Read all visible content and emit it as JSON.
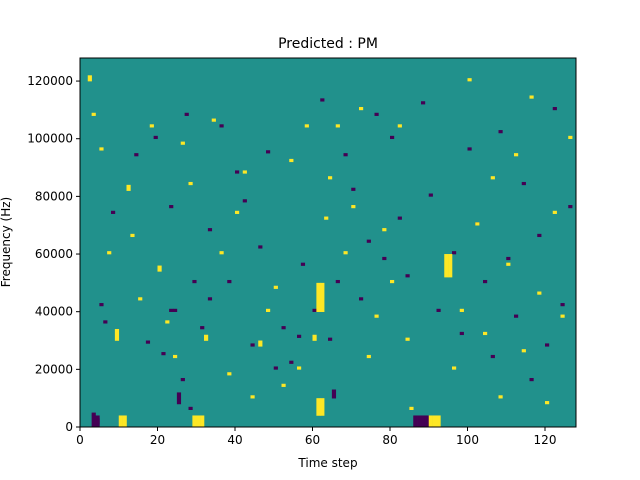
{
  "chart_data": {
    "type": "heatmap",
    "title": "Predicted : PM",
    "xlabel": "Time step",
    "ylabel": "Frequency (Hz)",
    "xlim": [
      0,
      128
    ],
    "ylim": [
      0,
      128000
    ],
    "x_ticks": [
      0,
      20,
      40,
      60,
      80,
      100,
      120
    ],
    "x_tick_labels": [
      "0",
      "20",
      "40",
      "60",
      "80",
      "100",
      "120"
    ],
    "y_ticks": [
      0,
      20000,
      40000,
      60000,
      80000,
      100000,
      120000
    ],
    "y_tick_labels": [
      "0",
      "20000",
      "40000",
      "60000",
      "80000",
      "100000",
      "120000"
    ],
    "n_time_steps": 128,
    "n_freq_bins": 128,
    "grid": false,
    "legend": "none",
    "colors": {
      "background": "#21918c",
      "low": "#440154",
      "high": "#fde725"
    },
    "cells": {
      "low": [
        [
          3,
          0,
          4
        ],
        [
          3,
          4,
          1
        ],
        [
          4,
          0,
          4
        ],
        [
          4,
          1,
          2
        ],
        [
          5,
          42,
          1
        ],
        [
          6,
          36,
          1
        ],
        [
          8,
          74,
          1
        ],
        [
          14,
          94,
          1
        ],
        [
          17,
          29,
          1
        ],
        [
          19,
          100,
          1
        ],
        [
          21,
          25,
          1
        ],
        [
          23,
          40,
          1
        ],
        [
          23,
          76,
          1
        ],
        [
          24,
          40,
          1
        ],
        [
          25,
          8,
          4
        ],
        [
          26,
          16,
          1
        ],
        [
          27,
          108,
          1
        ],
        [
          28,
          6,
          1
        ],
        [
          29,
          50,
          1
        ],
        [
          31,
          34,
          1
        ],
        [
          33,
          44,
          1
        ],
        [
          33,
          68,
          1
        ],
        [
          36,
          104,
          1
        ],
        [
          38,
          50,
          1
        ],
        [
          40,
          88,
          1
        ],
        [
          42,
          78,
          1
        ],
        [
          44,
          28,
          1
        ],
        [
          46,
          62,
          1
        ],
        [
          48,
          95,
          1
        ],
        [
          50,
          20,
          1
        ],
        [
          52,
          34,
          1
        ],
        [
          54,
          22,
          1
        ],
        [
          56,
          31,
          1
        ],
        [
          57,
          56,
          1
        ],
        [
          60,
          40,
          1
        ],
        [
          62,
          113,
          1
        ],
        [
          64,
          30,
          1
        ],
        [
          65,
          10,
          3
        ],
        [
          66,
          50,
          1
        ],
        [
          68,
          94,
          1
        ],
        [
          70,
          82,
          1
        ],
        [
          72,
          44,
          1
        ],
        [
          74,
          64,
          1
        ],
        [
          76,
          108,
          1
        ],
        [
          78,
          58,
          1
        ],
        [
          80,
          100,
          1
        ],
        [
          82,
          72,
          1
        ],
        [
          84,
          52,
          1
        ],
        [
          86,
          0,
          4
        ],
        [
          87,
          0,
          4
        ],
        [
          88,
          0,
          4
        ],
        [
          89,
          0,
          4
        ],
        [
          88,
          112,
          1
        ],
        [
          90,
          80,
          1
        ],
        [
          92,
          40,
          1
        ],
        [
          96,
          60,
          1
        ],
        [
          98,
          32,
          1
        ],
        [
          100,
          96,
          1
        ],
        [
          102,
          70,
          1
        ],
        [
          104,
          50,
          1
        ],
        [
          106,
          24,
          1
        ],
        [
          108,
          102,
          1
        ],
        [
          110,
          58,
          1
        ],
        [
          112,
          38,
          1
        ],
        [
          114,
          84,
          1
        ],
        [
          116,
          16,
          1
        ],
        [
          118,
          66,
          1
        ],
        [
          120,
          28,
          1
        ],
        [
          122,
          110,
          1
        ],
        [
          124,
          42,
          1
        ],
        [
          126,
          76,
          1
        ]
      ],
      "high": [
        [
          2,
          120,
          2
        ],
        [
          3,
          108,
          1
        ],
        [
          5,
          96,
          1
        ],
        [
          7,
          60,
          1
        ],
        [
          9,
          30,
          4
        ],
        [
          10,
          0,
          4
        ],
        [
          11,
          0,
          4
        ],
        [
          12,
          82,
          2
        ],
        [
          13,
          66,
          1
        ],
        [
          15,
          44,
          1
        ],
        [
          18,
          104,
          1
        ],
        [
          20,
          54,
          2
        ],
        [
          22,
          36,
          1
        ],
        [
          24,
          24,
          1
        ],
        [
          26,
          98,
          1
        ],
        [
          28,
          84,
          1
        ],
        [
          29,
          0,
          4
        ],
        [
          30,
          0,
          4
        ],
        [
          31,
          0,
          4
        ],
        [
          32,
          30,
          2
        ],
        [
          34,
          106,
          1
        ],
        [
          36,
          60,
          1
        ],
        [
          38,
          18,
          1
        ],
        [
          40,
          74,
          1
        ],
        [
          42,
          88,
          1
        ],
        [
          44,
          10,
          1
        ],
        [
          46,
          28,
          2
        ],
        [
          48,
          40,
          1
        ],
        [
          50,
          48,
          1
        ],
        [
          52,
          14,
          1
        ],
        [
          54,
          92,
          1
        ],
        [
          56,
          20,
          1
        ],
        [
          58,
          104,
          1
        ],
        [
          60,
          30,
          2
        ],
        [
          61,
          4,
          6
        ],
        [
          62,
          4,
          6
        ],
        [
          61,
          40,
          10
        ],
        [
          62,
          40,
          10
        ],
        [
          63,
          72,
          1
        ],
        [
          64,
          86,
          1
        ],
        [
          66,
          104,
          1
        ],
        [
          68,
          60,
          1
        ],
        [
          70,
          76,
          1
        ],
        [
          72,
          110,
          1
        ],
        [
          74,
          24,
          1
        ],
        [
          76,
          38,
          1
        ],
        [
          78,
          68,
          1
        ],
        [
          80,
          50,
          1
        ],
        [
          82,
          104,
          1
        ],
        [
          84,
          30,
          1
        ],
        [
          85,
          6,
          1
        ],
        [
          90,
          0,
          4
        ],
        [
          91,
          0,
          4
        ],
        [
          92,
          0,
          4
        ],
        [
          94,
          52,
          8
        ],
        [
          95,
          52,
          8
        ],
        [
          96,
          20,
          1
        ],
        [
          98,
          40,
          1
        ],
        [
          100,
          120,
          1
        ],
        [
          102,
          70,
          1
        ],
        [
          104,
          32,
          1
        ],
        [
          106,
          86,
          1
        ],
        [
          108,
          10,
          1
        ],
        [
          110,
          56,
          1
        ],
        [
          112,
          94,
          1
        ],
        [
          114,
          26,
          1
        ],
        [
          116,
          114,
          1
        ],
        [
          118,
          46,
          1
        ],
        [
          120,
          8,
          1
        ],
        [
          122,
          74,
          1
        ],
        [
          124,
          38,
          1
        ],
        [
          126,
          100,
          1
        ]
      ]
    }
  }
}
